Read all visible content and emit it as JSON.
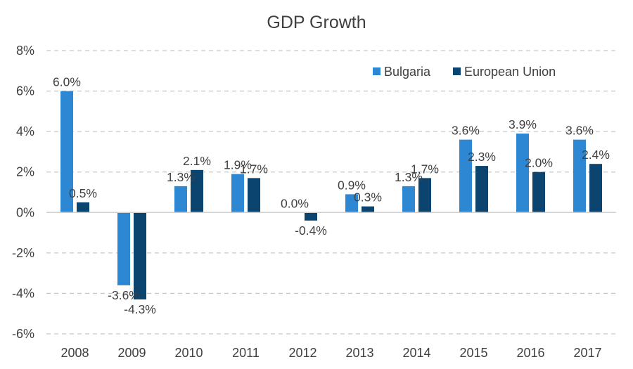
{
  "chart_data": {
    "type": "bar",
    "title": "GDP Growth",
    "xlabel": "",
    "ylabel": "",
    "categories": [
      "2008",
      "2009",
      "2010",
      "2011",
      "2012",
      "2013",
      "2014",
      "2015",
      "2016",
      "2017"
    ],
    "series": [
      {
        "name": "Bulgaria",
        "color": "#2e87d3",
        "values": [
          6.0,
          -3.6,
          1.3,
          1.9,
          0.0,
          0.9,
          1.3,
          3.6,
          3.9,
          3.6
        ],
        "labels": [
          "6.0%",
          "-3.6%",
          "1.3%",
          "1.9%",
          "0.0%",
          "0.9%",
          "1.3%",
          "3.6%",
          "3.9%",
          "3.6%"
        ]
      },
      {
        "name": "European Union",
        "color": "#0c4470",
        "values": [
          0.5,
          -4.3,
          2.1,
          1.7,
          -0.4,
          0.3,
          1.7,
          2.3,
          2.0,
          2.4
        ],
        "labels": [
          "0.5%",
          "-4.3%",
          "2.1%",
          "1.7%",
          "-0.4%",
          "0.3%",
          "1.7%",
          "2.3%",
          "2.0%",
          "2.4%"
        ]
      }
    ],
    "ylim": [
      -6,
      8
    ],
    "yticks": [
      8,
      6,
      4,
      2,
      0,
      -2,
      -4,
      -6
    ],
    "ytick_labels": [
      "8%",
      "6%",
      "4%",
      "2%",
      "0%",
      "-2%",
      "-4%",
      "-6%"
    ],
    "grid": true,
    "legend_position": "top-right"
  }
}
